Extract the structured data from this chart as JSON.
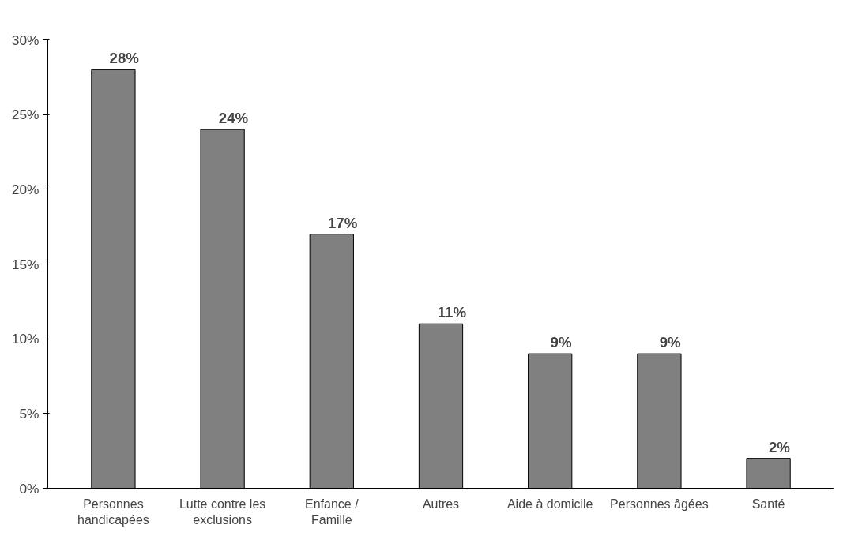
{
  "chart_data": {
    "type": "bar",
    "categories": [
      "Personnes handicapées",
      "Lutte contre les exclusions",
      "Enfance / Famille",
      "Autres",
      "Aide à domicile",
      "Personnes âgées",
      "Santé"
    ],
    "values": [
      28,
      24,
      17,
      11,
      9,
      9,
      2
    ],
    "color": "#808080",
    "value_labels": [
      "28%",
      "24%",
      "17%",
      "11%",
      "9%",
      "9%",
      "2%"
    ],
    "ylim": [
      0,
      30
    ],
    "yticks": [
      {
        "value": 0,
        "label": "0%"
      },
      {
        "value": 5,
        "label": "5%"
      },
      {
        "value": 10,
        "label": "10%"
      },
      {
        "value": 15,
        "label": "15%"
      },
      {
        "value": 20,
        "label": "20%"
      },
      {
        "value": 25,
        "label": "25%"
      },
      {
        "value": 30,
        "label": "30%"
      }
    ],
    "grid": false
  }
}
